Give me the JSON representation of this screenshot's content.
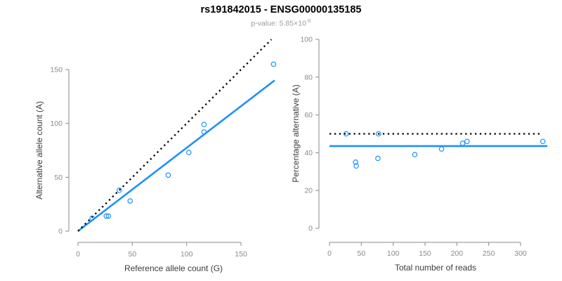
{
  "header": {
    "title": "rs191842015 - ENSG00000135185",
    "pvalue_prefix": "p-value: 5.85×10",
    "pvalue_exponent": "-6"
  },
  "colors": {
    "accent_blue": "#1E90FF",
    "dotted_line": "#000000",
    "axis": "#8a8a8a",
    "tick_label": "#8a8a8a",
    "axis_title": "#3c3c3c",
    "title": "#000000",
    "subtitle": "#9b9b9b"
  },
  "chart_data": [
    {
      "type": "scatter",
      "name": "reference-vs-alternative-allele-count",
      "xlabel": "Reference allele count (G)",
      "ylabel": "Alternative allele count (A)",
      "xlim": [
        0,
        185
      ],
      "ylim": [
        0,
        185
      ],
      "xticks": [
        0,
        50,
        100,
        150
      ],
      "yticks": [
        0,
        50,
        100,
        150
      ],
      "grid": false,
      "legend": false,
      "points": [
        [
          13,
          12
        ],
        [
          26,
          14
        ],
        [
          28,
          14
        ],
        [
          38,
          38
        ],
        [
          48,
          28
        ],
        [
          83,
          52
        ],
        [
          102,
          73
        ],
        [
          116,
          92
        ],
        [
          116,
          99
        ],
        [
          180,
          155
        ]
      ],
      "lines": [
        {
          "name": "regression-line",
          "x1": 0,
          "y1": 0,
          "x2": 181,
          "y2": 140,
          "style": "solid",
          "color": "#1E90FF"
        },
        {
          "name": "identity-line",
          "x1": 0,
          "y1": 0,
          "x2": 178,
          "y2": 178,
          "style": "dotted",
          "color": "#000000"
        }
      ]
    },
    {
      "type": "scatter",
      "name": "total-reads-vs-percentage-alternative",
      "xlabel": "Total number of reads",
      "ylabel": "Percentage alternative (A)",
      "xlim": [
        0,
        345
      ],
      "ylim": [
        0,
        100
      ],
      "xticks": [
        0,
        50,
        100,
        150,
        200,
        250,
        300
      ],
      "yticks": [
        0,
        20,
        40,
        60,
        80,
        100
      ],
      "grid": false,
      "legend": false,
      "points": [
        [
          26,
          50
        ],
        [
          41,
          35
        ],
        [
          42,
          33
        ],
        [
          76,
          37
        ],
        [
          77,
          50
        ],
        [
          134,
          39
        ],
        [
          176,
          42
        ],
        [
          209,
          45
        ],
        [
          216,
          46
        ],
        [
          335,
          46
        ]
      ],
      "lines": [
        {
          "name": "mean-percentage-line",
          "x1": 0,
          "y1": 43.5,
          "x2": 342,
          "y2": 43.5,
          "style": "solid",
          "color": "#1E90FF"
        },
        {
          "name": "expected-50-percent-line",
          "x1": 0,
          "y1": 50,
          "x2": 333,
          "y2": 50,
          "style": "dotted",
          "color": "#000000"
        }
      ]
    }
  ]
}
